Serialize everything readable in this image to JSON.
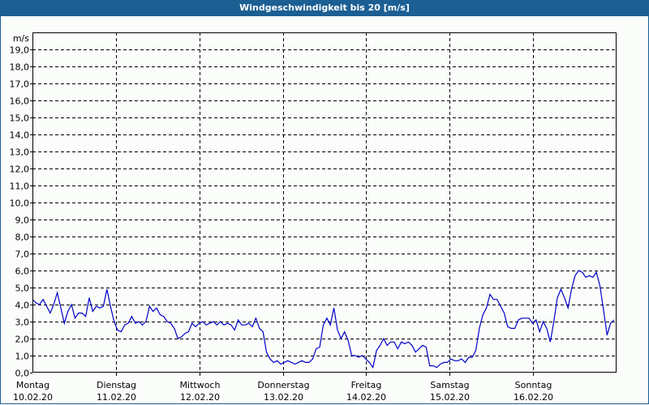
{
  "window": {
    "title": "Windgeschwindigkeit bis 20 [m/s]"
  },
  "colors": {
    "titlebar": "#1c5f93",
    "line": "#0000c8",
    "grid": "#000000",
    "background": "#fbfdfb"
  },
  "chart_data": {
    "type": "line",
    "title": "Windgeschwindigkeit bis 20 [m/s]",
    "xlabel": "",
    "ylabel": "m/s",
    "ylim": [
      0,
      20
    ],
    "grid": true,
    "yticks": [
      "0,0",
      "1,0",
      "2,0",
      "3,0",
      "4,0",
      "5,0",
      "6,0",
      "7,0",
      "8,0",
      "9,0",
      "10,0",
      "11,0",
      "12,0",
      "13,0",
      "14,0",
      "15,0",
      "16,0",
      "17,0",
      "18,0",
      "19,0"
    ],
    "categories": [
      {
        "day": "Montag",
        "date": "10.02.20"
      },
      {
        "day": "Dienstag",
        "date": "11.02.20"
      },
      {
        "day": "Mittwoch",
        "date": "12.02.20"
      },
      {
        "day": "Donnerstag",
        "date": "13.02.20"
      },
      {
        "day": "Freitag",
        "date": "14.02.20"
      },
      {
        "day": "Samstag",
        "date": "15.02.20"
      },
      {
        "day": "Sonntag",
        "date": "16.02.20"
      }
    ],
    "series": [
      {
        "name": "Windgeschwindigkeit",
        "unit": "m/s",
        "values": [
          4.3,
          4.1,
          4.0,
          4.3,
          3.9,
          3.5,
          4.0,
          4.7,
          3.8,
          2.9,
          3.6,
          4.0,
          3.2,
          3.5,
          3.5,
          3.3,
          4.4,
          3.6,
          3.9,
          3.8,
          3.9,
          4.9,
          3.9,
          3.0,
          2.5,
          2.4,
          2.8,
          2.9,
          3.3,
          2.9,
          3.0,
          2.8,
          3.0,
          3.9,
          3.6,
          3.8,
          3.4,
          3.3,
          3.0,
          2.9,
          2.6,
          2.0,
          2.1,
          2.3,
          2.4,
          2.9,
          2.7,
          2.9,
          3.0,
          2.8,
          2.9,
          3.0,
          2.8,
          3.0,
          2.8,
          2.9,
          2.8,
          2.5,
          3.1,
          2.8,
          2.8,
          2.9,
          2.7,
          3.2,
          2.6,
          2.4,
          1.2,
          0.8,
          0.6,
          0.7,
          0.5,
          0.6,
          0.7,
          0.6,
          0.5,
          0.6,
          0.7,
          0.6,
          0.6,
          0.8,
          1.4,
          1.5,
          2.8,
          3.2,
          2.8,
          3.8,
          2.5,
          2.0,
          2.4,
          1.9,
          1.0,
          1.0,
          0.9,
          1.0,
          0.8,
          0.6,
          0.3,
          1.3,
          1.6,
          2.0,
          1.6,
          1.8,
          1.8,
          1.4,
          1.8,
          1.7,
          1.8,
          1.6,
          1.2,
          1.4,
          1.6,
          1.5,
          0.4,
          0.4,
          0.3,
          0.5,
          0.6,
          0.6,
          0.8,
          0.7,
          0.7,
          0.8,
          0.6,
          0.9,
          0.9,
          1.3,
          2.6,
          3.4,
          3.8,
          4.6,
          4.3,
          4.3,
          3.9,
          3.5,
          2.7,
          2.6,
          2.6,
          3.1,
          3.2,
          3.2,
          3.2,
          2.9,
          3.1,
          2.4,
          3.0,
          2.6,
          1.8,
          3.0,
          4.4,
          4.9,
          4.4,
          3.8,
          4.9,
          5.7,
          6.0,
          5.9,
          5.6,
          5.7,
          5.6,
          5.9,
          5.1,
          3.7,
          2.2,
          2.9,
          3.1
        ]
      }
    ]
  },
  "plot": {
    "unit_label": "m/s"
  }
}
